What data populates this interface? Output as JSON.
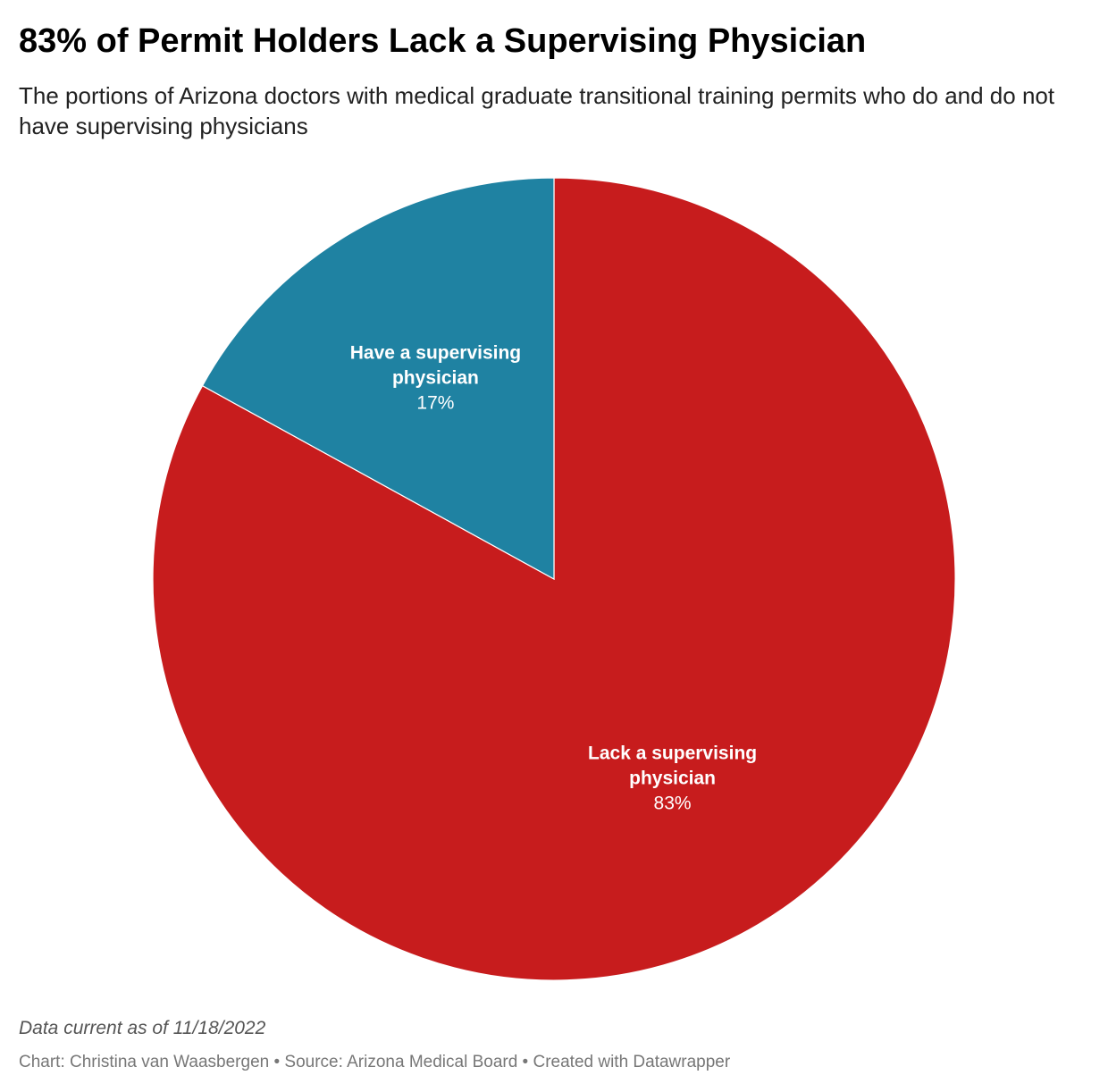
{
  "header": {
    "title": "83% of Permit Holders Lack a Supervising Physician",
    "subtitle": "The portions of Arizona doctors with medical graduate transitional training permits who do and do not have supervising physicians"
  },
  "chart_data": {
    "type": "pie",
    "slices": [
      {
        "label_lines": [
          "Lack a supervising",
          "physician"
        ],
        "value": 83,
        "value_label": "83%",
        "color": "#c71c1d"
      },
      {
        "label_lines": [
          "Have a supervising",
          "physician"
        ],
        "value": 17,
        "value_label": "17%",
        "color": "#1f82a2"
      }
    ],
    "start": "12 o'clock",
    "direction": "clockwise",
    "slice_separator_color": "#ffffff"
  },
  "footer": {
    "notes": "Data current as of 11/18/2022",
    "credits": "Chart: Christina van Waasbergen • Source: Arizona Medical Board • Created with Datawrapper"
  }
}
